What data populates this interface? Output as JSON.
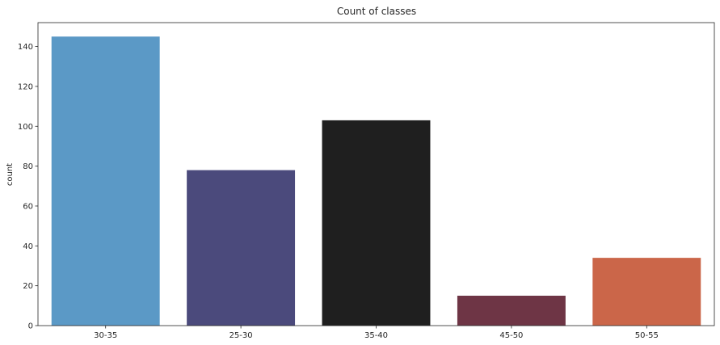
{
  "chart_data": {
    "type": "bar",
    "title": "Count of classes",
    "xlabel": "",
    "ylabel": "count",
    "categories": [
      "30-35",
      "25-30",
      "35-40",
      "45-50",
      "50-55"
    ],
    "values": [
      145,
      78,
      103,
      15,
      34
    ],
    "colors": [
      "#5b99c6",
      "#4b4a7c",
      "#1f1f1f",
      "#6e3545",
      "#cb6649"
    ],
    "ylim": [
      0,
      152
    ],
    "yticks": [
      0,
      20,
      40,
      60,
      80,
      100,
      120,
      140
    ],
    "grid": false,
    "legend": "none"
  }
}
